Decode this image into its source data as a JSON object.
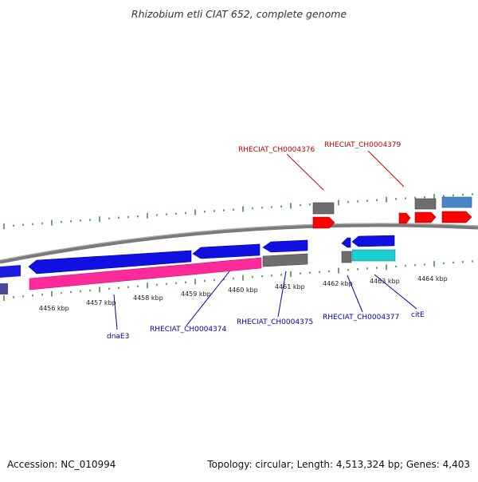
{
  "title": "Rhizobium etli CIAT 652, complete genome",
  "footer": {
    "accession": "Accession: NC_010994",
    "summary": "Topology: circular; Length: 4,513,324 bp; Genes: 4,403"
  },
  "colors": {
    "backbone": "#777777",
    "tick": "#1a7a1a",
    "gene_forward": "#ff0000",
    "gene_reverse": "#0000e0",
    "rna_or_other": "#6e6e6e",
    "cds_highlight": "#ff2a9a",
    "cds_cyan": "#1ecfcf",
    "cds_steelblue": "#4a86c6",
    "label_red": "#c00000",
    "label_blue": "#0000aa"
  },
  "scale_labels": [
    "4456 kbp",
    "4457 kbp",
    "4458 kbp",
    "4459 kbp",
    "4460 kbp",
    "4461 kbp",
    "4462 kbp",
    "4463 kbp",
    "4464 kbp"
  ],
  "gene_labels": {
    "top": [
      "RHECIAT_CH0004376",
      "RHECIAT_CH0004379"
    ],
    "bottom": [
      "dnaE3",
      "RHECIAT_CH0004374",
      "RHECIAT_CH0004375",
      "RHECIAT_CH0004377",
      "citE"
    ]
  }
}
